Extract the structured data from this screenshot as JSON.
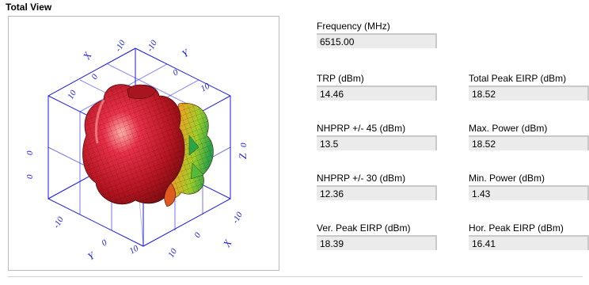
{
  "section_title": "Total View",
  "plot": {
    "axis_labels": {
      "x_top": "X",
      "y_top": "Y",
      "z_right": "Z",
      "x_bottom": "X",
      "y_bottom": "Y"
    },
    "ticks": {
      "top_left_10": "-10",
      "top_left_0": "0",
      "top_left_n10": "10",
      "top_mid_10": "-10",
      "top_right_0": "0",
      "top_right_10": "10",
      "left_0": "0",
      "left_10": "0",
      "right_0": "0",
      "bottom_left_n10": "-10",
      "bottom_left_0": "0",
      "bottom_mid_10": "10",
      "bottom_right_n10": "-10",
      "bottom_right_0": "0",
      "bottom_right_10": "10"
    },
    "colors": {
      "axis": "#1a1ae0",
      "surface_hot": "#d4182a",
      "surface_mid": "#f08a1c",
      "surface_cool": "#2fa33a"
    }
  },
  "fields": {
    "frequency": {
      "label": "Frequency (MHz)",
      "value": "6515.00"
    },
    "trp": {
      "label": "TRP (dBm)",
      "value": "14.46"
    },
    "total_peak_eirp": {
      "label": "Total Peak EIRP (dBm)",
      "value": "18.52"
    },
    "nhprp_45": {
      "label": "NHPRP +/- 45 (dBm)",
      "value": "13.5"
    },
    "max_power": {
      "label": "Max. Power (dBm)",
      "value": "18.52"
    },
    "nhprp_30": {
      "label": "NHPRP +/- 30 (dBm)",
      "value": "12.36"
    },
    "min_power": {
      "label": "Min. Power (dBm)",
      "value": "1.43"
    },
    "ver_peak_eirp": {
      "label": "Ver. Peak EIRP (dBm)",
      "value": "18.39"
    },
    "hor_peak_eirp": {
      "label": "Hor. Peak EIRP (dBm)",
      "value": "16.41"
    }
  }
}
